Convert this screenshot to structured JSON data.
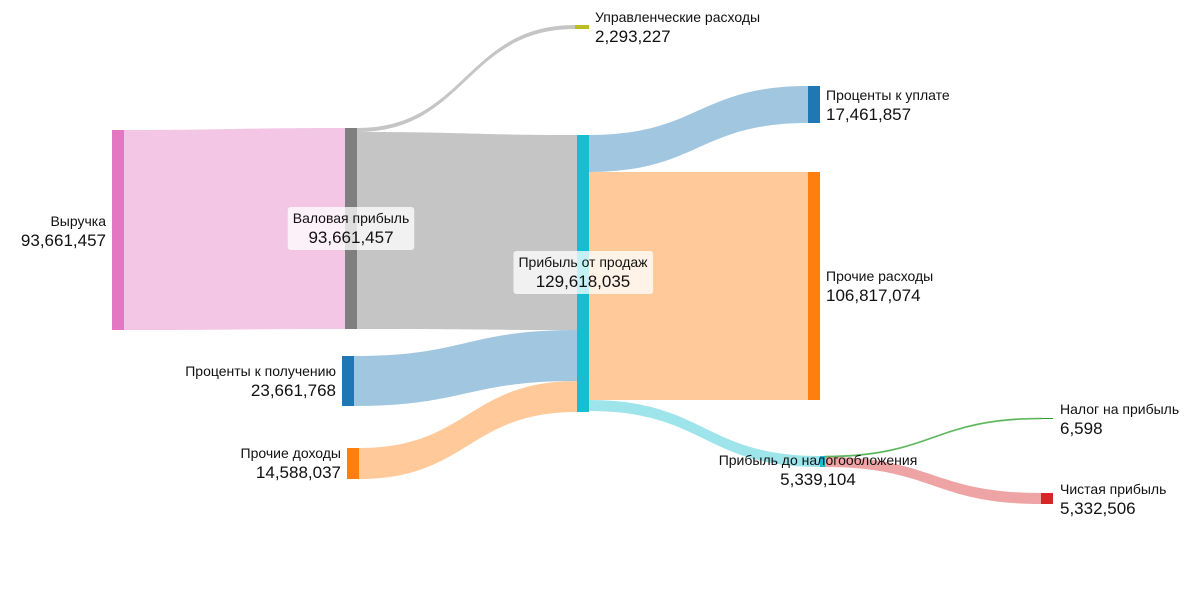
{
  "chart_data": {
    "type": "sankey",
    "title": "",
    "nodes": [
      {
        "id": "revenue",
        "label": "Выручка",
        "value_text": "93,661,457",
        "color": "#e377c2"
      },
      {
        "id": "gross",
        "label": "Валовая прибыль",
        "value_text": "93,661,457",
        "color": "#7f7f7f"
      },
      {
        "id": "interest_in",
        "label": "Проценты к получению",
        "value_text": "23,661,768",
        "color": "#1f77b4"
      },
      {
        "id": "other_in",
        "label": "Прочие доходы",
        "value_text": "14,588,037",
        "color": "#ff7f0e"
      },
      {
        "id": "admin",
        "label": "Управленческие расходы",
        "value_text": "2,293,227",
        "color": "#bcbd22"
      },
      {
        "id": "sales",
        "label": "Прибыль от продаж",
        "value_text": "129,618,035",
        "color": "#17becf"
      },
      {
        "id": "interest_out",
        "label": "Проценты к уплате",
        "value_text": "17,461,857",
        "color": "#1f77b4"
      },
      {
        "id": "other_out",
        "label": "Прочие расходы",
        "value_text": "106,817,074",
        "color": "#ff7f0e"
      },
      {
        "id": "pbt",
        "label": "Прибыль до налогообложения",
        "value_text": "5,339,104",
        "color": "#17becf"
      },
      {
        "id": "tax",
        "label": "Налог на прибыль",
        "value_text": "6,598",
        "color": "#2ca02c"
      },
      {
        "id": "net",
        "label": "Чистая прибыль",
        "value_text": "5,332,506",
        "color": "#d62728"
      }
    ],
    "links": [
      {
        "source": "revenue",
        "target": "gross",
        "value": 93661457,
        "color": "#e377c2"
      },
      {
        "source": "gross",
        "target": "admin",
        "value": 2293227,
        "color": "#7f7f7f"
      },
      {
        "source": "gross",
        "target": "sales",
        "value": 91368230,
        "color": "#7f7f7f"
      },
      {
        "source": "interest_in",
        "target": "sales",
        "value": 23661768,
        "color": "#1f77b4"
      },
      {
        "source": "other_in",
        "target": "sales",
        "value": 14588037,
        "color": "#ff7f0e"
      },
      {
        "source": "sales",
        "target": "interest_out",
        "value": 17461857,
        "color": "#1f77b4"
      },
      {
        "source": "sales",
        "target": "other_out",
        "value": 106817074,
        "color": "#ff7f0e"
      },
      {
        "source": "sales",
        "target": "pbt",
        "value": 5339104,
        "color": "#17becf"
      },
      {
        "source": "pbt",
        "target": "tax",
        "value": 6598,
        "color": "#2ca02c"
      },
      {
        "source": "pbt",
        "target": "net",
        "value": 5332506,
        "color": "#d62728"
      }
    ]
  }
}
